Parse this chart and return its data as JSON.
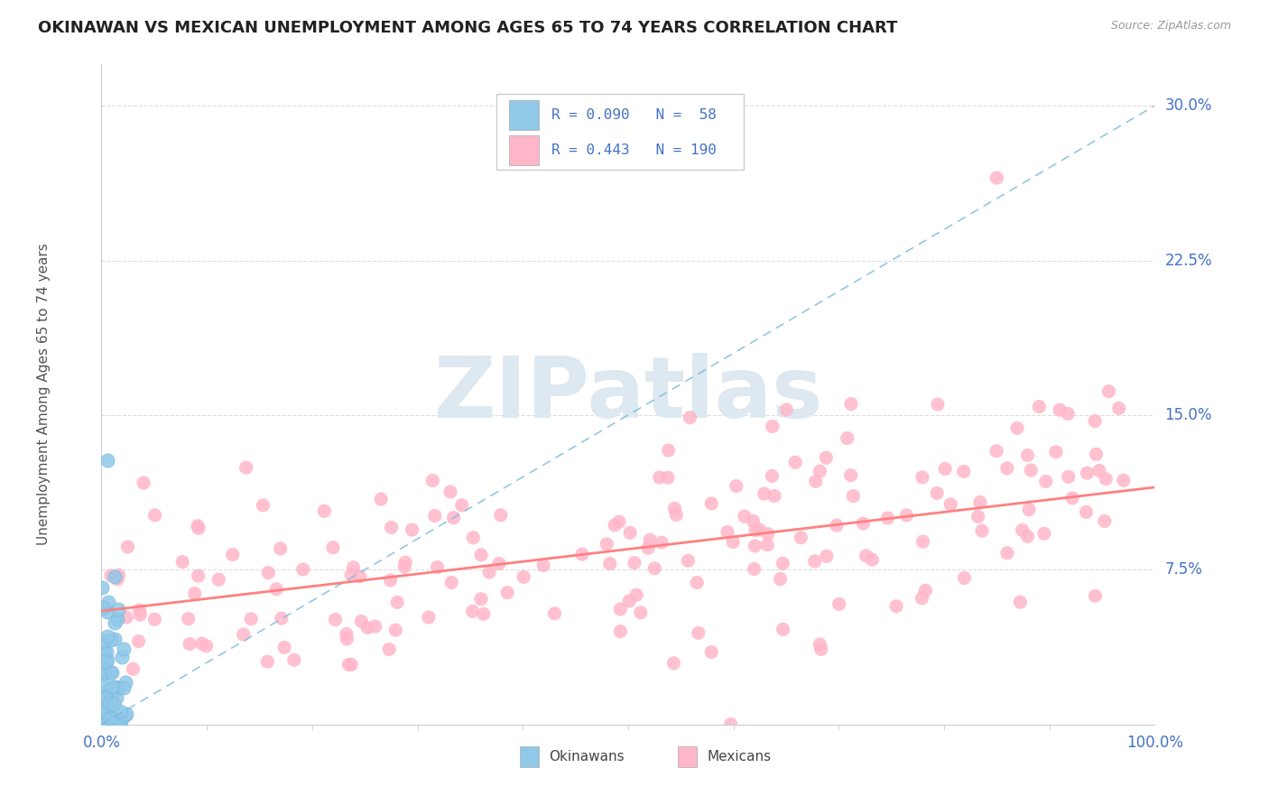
{
  "title": "OKINAWAN VS MEXICAN UNEMPLOYMENT AMONG AGES 65 TO 74 YEARS CORRELATION CHART",
  "source": "Source: ZipAtlas.com",
  "ylabel": "Unemployment Among Ages 65 to 74 years",
  "ytick_labels": [
    "7.5%",
    "15.0%",
    "22.5%",
    "30.0%"
  ],
  "ytick_values": [
    0.075,
    0.15,
    0.225,
    0.3
  ],
  "xlim": [
    0.0,
    1.0
  ],
  "ylim": [
    0.0,
    0.32
  ],
  "okinawan_R": 0.09,
  "okinawan_N": 58,
  "mexican_R": 0.443,
  "mexican_N": 190,
  "okinawan_color": "#90c8e8",
  "mexican_color": "#ffb6c8",
  "okinawan_line_color": "#7ab8dd",
  "mexican_line_color": "#ff8080",
  "axis_label_color": "#4472c4",
  "title_color": "#222222",
  "background_color": "#ffffff",
  "watermark_text": "ZIPatlas",
  "watermark_color": "#dde8f0",
  "legend_label_okinawan": "Okinawans",
  "legend_label_mexican": "Mexicans",
  "ok_trend_x0": 0.0,
  "ok_trend_y0": 0.0,
  "ok_trend_x1": 1.0,
  "ok_trend_y1": 0.3,
  "mex_trend_x0": 0.0,
  "mex_trend_y0": 0.055,
  "mex_trend_x1": 1.0,
  "mex_trend_y1": 0.115,
  "seed": 42,
  "grid_color": "#dddddd",
  "spine_color": "#cccccc"
}
